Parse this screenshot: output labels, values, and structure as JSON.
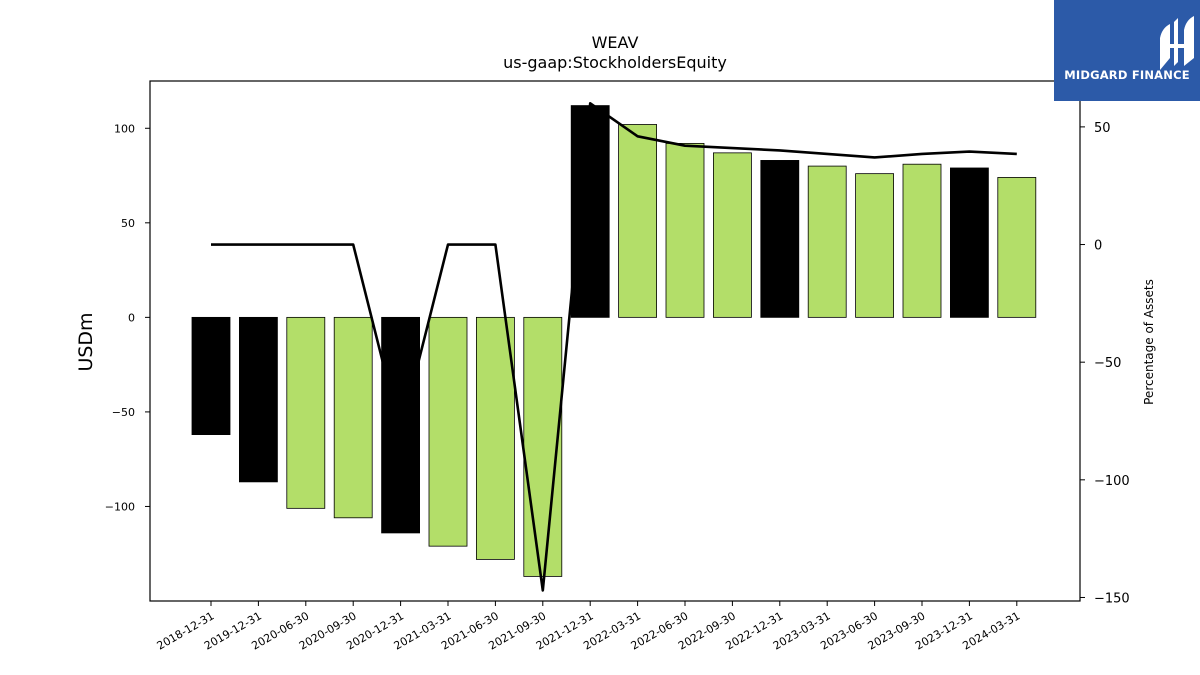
{
  "chart_data": {
    "type": "bar",
    "title": "WEAV",
    "subtitle": "us-gaap:StockholdersEquity",
    "ylabel": "USDm",
    "y2label": "Percentage of Assets",
    "ylim": [
      -150,
      125
    ],
    "y2lim": [
      -151.5,
      69.5
    ],
    "yticks": [
      100,
      50,
      0,
      -50,
      -100
    ],
    "y2ticks": [
      50,
      0,
      -50,
      -100,
      -150
    ],
    "grid": false,
    "categories": [
      "2018-12-31",
      "2019-12-31",
      "2020-06-30",
      "2020-09-30",
      "2020-12-31",
      "2021-03-31",
      "2021-06-30",
      "2021-09-30",
      "2021-12-31",
      "2022-03-31",
      "2022-06-30",
      "2022-09-30",
      "2022-12-31",
      "2023-03-31",
      "2023-06-30",
      "2023-09-30",
      "2023-12-31",
      "2024-03-31"
    ],
    "values": [
      -62,
      -87,
      -101,
      -106,
      -114,
      -121,
      -128,
      -137,
      112,
      102,
      92,
      87,
      83,
      80,
      76,
      81,
      79,
      74
    ],
    "bar_colors": [
      "#000000",
      "#000000",
      "#b3de69",
      "#b3de69",
      "#000000",
      "#b3de69",
      "#b3de69",
      "#b3de69",
      "#000000",
      "#b3de69",
      "#b3de69",
      "#b3de69",
      "#000000",
      "#b3de69",
      "#b3de69",
      "#b3de69",
      "#000000",
      "#b3de69"
    ],
    "line_values": [
      0,
      0,
      0,
      0,
      -80,
      0,
      0,
      -147,
      60,
      46,
      42,
      41,
      40,
      38.5,
      37,
      38.5,
      39.5,
      38.5
    ],
    "line_color": "#000000"
  },
  "logo": {
    "text": "MIDGARD FINANCE",
    "bg": "#2c5aa8"
  }
}
